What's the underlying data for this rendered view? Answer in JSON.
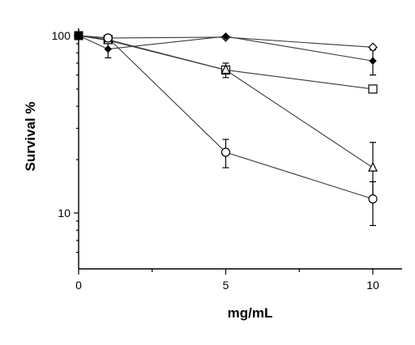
{
  "chart_data": {
    "type": "line",
    "xlabel": "mg/mL",
    "ylabel": "Survival %",
    "x_ticks": [
      "0",
      "5",
      "10"
    ],
    "y_ticks": [
      "10",
      "100"
    ],
    "xlim": [
      0,
      10.5
    ],
    "ylim": [
      5,
      115
    ],
    "y_scale": "log",
    "grid": false,
    "series": [
      {
        "marker": "open-diamond",
        "x": [
          0,
          1,
          5,
          10
        ],
        "y": [
          100,
          97,
          98,
          86
        ],
        "yerr_low": [
          null,
          null,
          null,
          null
        ],
        "yerr_high": [
          null,
          null,
          null,
          null
        ]
      },
      {
        "marker": "filled-diamond",
        "x": [
          0,
          1,
          5,
          10
        ],
        "y": [
          100,
          84,
          99,
          72
        ],
        "yerr_low": [
          null,
          75,
          null,
          60
        ],
        "yerr_high": [
          null,
          93,
          null,
          83
        ]
      },
      {
        "marker": "open-square",
        "x": [
          0,
          1,
          5,
          10
        ],
        "y": [
          100,
          95,
          64,
          50
        ],
        "yerr_low": [
          null,
          null,
          58,
          null
        ],
        "yerr_high": [
          null,
          null,
          70,
          null
        ]
      },
      {
        "marker": "open-triangle",
        "x": [
          0,
          1,
          5,
          10
        ],
        "y": [
          100,
          94,
          64,
          18
        ],
        "yerr_low": [
          null,
          null,
          null,
          12
        ],
        "yerr_high": [
          null,
          null,
          null,
          25
        ]
      },
      {
        "marker": "open-circle",
        "x": [
          0,
          1,
          5,
          10
        ],
        "y": [
          100,
          97,
          22,
          12
        ],
        "yerr_low": [
          null,
          null,
          18,
          8.5
        ],
        "yerr_high": [
          null,
          null,
          26,
          15
        ]
      }
    ]
  }
}
